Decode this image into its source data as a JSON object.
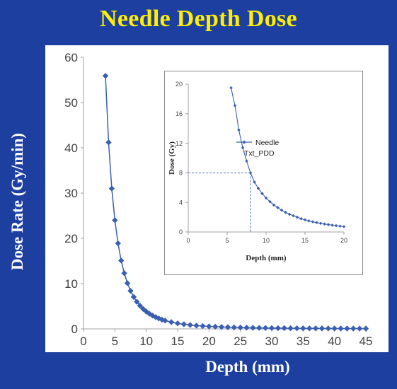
{
  "slide": {
    "title": "Needle Depth Dose"
  },
  "chart_data": [
    {
      "type": "line",
      "title": "",
      "xlabel": "Depth (mm)",
      "ylabel": "Dose Rate (Gy/min)",
      "xlim": [
        0,
        45
      ],
      "ylim": [
        0,
        60
      ],
      "xticks": [
        0,
        5,
        10,
        15,
        20,
        25,
        30,
        35,
        40,
        45
      ],
      "yticks": [
        0,
        10,
        20,
        30,
        40,
        50,
        60
      ],
      "grid": false,
      "marker": "diamond",
      "color": "#3a5fb0",
      "series": [
        {
          "x": [
            3.5,
            4.0,
            4.5,
            5.0,
            5.5,
            6.0,
            6.5,
            7.0,
            7.5,
            8.0,
            8.5,
            9.0,
            9.5,
            10,
            10.5,
            11,
            11.5,
            12,
            12.5,
            13,
            14,
            15,
            16,
            17,
            18,
            19,
            20,
            21,
            22,
            23,
            24,
            25,
            26,
            27,
            28,
            29,
            30,
            31,
            32,
            33,
            34,
            35,
            36,
            37,
            38,
            39,
            40,
            41,
            42,
            43,
            44,
            45
          ],
          "y": [
            55.9,
            41.2,
            31.0,
            24.0,
            18.9,
            15.1,
            12.3,
            10.1,
            8.4,
            7.05,
            5.98,
            5.12,
            4.41,
            3.83,
            3.35,
            2.94,
            2.6,
            2.3,
            2.05,
            1.83,
            1.49,
            1.22,
            1.02,
            0.86,
            0.73,
            0.63,
            0.55,
            0.48,
            0.42,
            0.37,
            0.33,
            0.3,
            0.27,
            0.24,
            0.22,
            0.2,
            0.18,
            0.17,
            0.16,
            0.14,
            0.13,
            0.12,
            0.115,
            0.108,
            0.1,
            0.095,
            0.09,
            0.085,
            0.08,
            0.075,
            0.071,
            0.068
          ]
        }
      ]
    },
    {
      "type": "line",
      "title": "",
      "xlabel": "Depth (mm)",
      "ylabel": "Dose (Gy)",
      "xlim": [
        0,
        20
      ],
      "ylim": [
        0,
        20
      ],
      "xticks": [
        0,
        5,
        10,
        15,
        20
      ],
      "yticks": [
        0,
        4,
        8,
        12,
        16,
        20
      ],
      "grid": false,
      "legend": "center-right",
      "reference_point": {
        "x": 8,
        "y": 8
      },
      "marker": "diamond",
      "color": "#3a5fb0",
      "series": [
        {
          "name": "Needle Txt_PDD",
          "x": [
            5.5,
            6.0,
            6.5,
            7.0,
            7.5,
            8.0,
            8.5,
            9.0,
            9.5,
            10.0,
            10.5,
            11.0,
            11.5,
            12.0,
            12.5,
            13.0,
            13.5,
            14.0,
            14.5,
            15.0,
            15.5,
            16.0,
            16.5,
            17.0,
            17.5,
            18.0,
            18.5,
            19.0,
            19.5,
            20.0
          ],
          "y": [
            19.5,
            17.1,
            13.8,
            11.4,
            9.6,
            8.0,
            6.75,
            5.9,
            5.2,
            4.6,
            4.1,
            3.65,
            3.3,
            2.95,
            2.65,
            2.4,
            2.2,
            2.0,
            1.8,
            1.65,
            1.5,
            1.38,
            1.27,
            1.17,
            1.08,
            1.0,
            0.92,
            0.85,
            0.79,
            0.73
          ]
        }
      ]
    }
  ]
}
